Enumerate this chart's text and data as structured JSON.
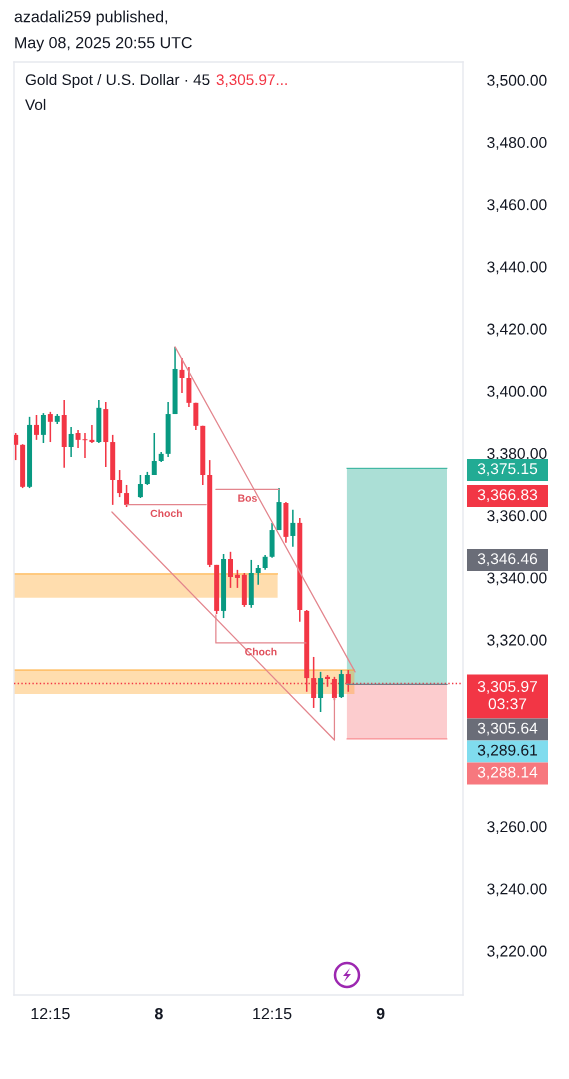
{
  "chart_data": {
    "type": "candlestick",
    "title": "Gold Spot / U.S. Dollar · 45",
    "x": [
      "2025-05-07T08:30",
      "2025-05-07T09:15",
      "2025-05-07T10:00",
      "2025-05-07T10:45",
      "2025-05-07T11:30",
      "2025-05-07T12:15",
      "2025-05-07T13:00",
      "2025-05-07T13:45",
      "2025-05-07T14:30",
      "2025-05-07T15:15",
      "2025-05-07T16:00",
      "2025-05-07T16:45",
      "2025-05-07T17:30",
      "2025-05-07T18:15",
      "2025-05-07T19:00",
      "2025-05-07T19:45",
      "2025-05-07T20:30",
      "2025-05-07T22:00",
      "2025-05-07T22:45",
      "2025-05-07T23:30",
      "2025-05-08T00:15",
      "2025-05-08T01:00",
      "2025-05-08T01:45",
      "2025-05-08T02:30",
      "2025-05-08T03:15",
      "2025-05-08T04:00",
      "2025-05-08T04:45",
      "2025-05-08T05:30",
      "2025-05-08T06:15",
      "2025-05-08T07:00",
      "2025-05-08T07:45",
      "2025-05-08T08:30",
      "2025-05-08T09:15",
      "2025-05-08T10:00",
      "2025-05-08T10:45",
      "2025-05-08T11:30",
      "2025-05-08T12:15",
      "2025-05-08T13:00",
      "2025-05-08T13:45",
      "2025-05-08T14:30",
      "2025-05-08T15:15",
      "2025-05-08T16:00",
      "2025-05-08T16:45",
      "2025-05-08T17:30",
      "2025-05-08T18:15",
      "2025-05-08T19:00",
      "2025-05-08T19:45",
      "2025-05-08T20:30"
    ],
    "ohlc": [
      [
        3385.9,
        3386.5,
        3377.8,
        3382.7
      ],
      [
        3382.7,
        3382.9,
        3368.8,
        3369.2
      ],
      [
        3369.2,
        3391.7,
        3368.8,
        3389.1
      ],
      [
        3389.1,
        3392.3,
        3384.3,
        3385.9
      ],
      [
        3385.9,
        3392.9,
        3383.3,
        3392.3
      ],
      [
        3392.6,
        3393.3,
        3383.6,
        3390.1
      ],
      [
        3390.1,
        3392.6,
        3389.4,
        3392.0
      ],
      [
        3392.3,
        3397.1,
        3375.3,
        3382.0
      ],
      [
        3382.0,
        3388.4,
        3378.8,
        3386.2
      ],
      [
        3386.5,
        3387.5,
        3381.7,
        3384.3
      ],
      [
        3384.5,
        3386.5,
        3378.5,
        3384.2
      ],
      [
        3384.3,
        3389.1,
        3383.3,
        3383.6
      ],
      [
        3383.6,
        3397.1,
        3383.3,
        3394.6
      ],
      [
        3394.2,
        3396.5,
        3375.6,
        3383.6
      ],
      [
        3383.6,
        3385.9,
        3363.4,
        3371.4
      ],
      [
        3371.4,
        3374.6,
        3365.9,
        3367.2
      ],
      [
        3367.2,
        3369.8,
        3362.7,
        3363.4
      ],
      [
        3365.9,
        3373.0,
        3365.6,
        3370.1
      ],
      [
        3370.1,
        3374.0,
        3369.8,
        3373.0
      ],
      [
        3373.0,
        3386.5,
        3373.0,
        3377.5
      ],
      [
        3377.5,
        3380.4,
        3377.2,
        3379.8
      ],
      [
        3379.8,
        3396.5,
        3378.8,
        3392.6
      ],
      [
        3392.6,
        3414.2,
        3392.6,
        3407.1
      ],
      [
        3406.8,
        3410.6,
        3399.4,
        3404.2
      ],
      [
        3404.2,
        3407.7,
        3394.9,
        3396.2
      ],
      [
        3396.2,
        3396.2,
        3387.5,
        3388.8
      ],
      [
        3388.8,
        3388.8,
        3369.8,
        3373.0
      ],
      [
        3373.0,
        3377.8,
        3343.4,
        3344.1
      ],
      [
        3344.1,
        3344.1,
        3328.3,
        3329.3
      ],
      [
        3329.3,
        3347.6,
        3327.0,
        3346.0
      ],
      [
        3346.0,
        3348.3,
        3336.7,
        3340.2
      ],
      [
        3340.9,
        3342.5,
        3336.7,
        3339.9
      ],
      [
        3340.9,
        3341.5,
        3330.6,
        3331.2
      ],
      [
        3331.2,
        3345.7,
        3330.3,
        3341.5
      ],
      [
        3341.5,
        3344.1,
        3337.7,
        3343.1
      ],
      [
        3343.1,
        3347.3,
        3342.5,
        3346.7
      ],
      [
        3346.7,
        3357.6,
        3346.4,
        3355.3
      ],
      [
        3355.3,
        3368.8,
        3355.3,
        3364.3
      ],
      [
        3364.0,
        3364.3,
        3351.2,
        3353.1
      ],
      [
        3353.4,
        3361.8,
        3349.9,
        3357.6
      ],
      [
        3357.6,
        3359.2,
        3325.8,
        3329.6
      ],
      [
        3329.3,
        3329.6,
        3303.3,
        3307.7
      ],
      [
        3307.7,
        3314.5,
        3298.1,
        3301.3
      ],
      [
        3301.3,
        3309.7,
        3296.8,
        3307.7
      ],
      [
        3308.1,
        3308.7,
        3304.9,
        3307.4
      ],
      [
        3307.4,
        3308.1,
        3300.6,
        3301.3
      ],
      [
        3301.6,
        3310.3,
        3301.3,
        3309.0
      ],
      [
        3309.0,
        3310.3,
        3303.3,
        3305.97
      ]
    ],
    "series": [
      {
        "type": "line",
        "x": [
          "2025-05-07T08:19",
          "2025-05-08T12:51"
        ],
        "values": [
          3341.2,
          3341.2
        ],
        "lower": [
          3333.5,
          3333.5
        ],
        "upper": [
          3341.2,
          3341.2
        ],
        "color": "#ffa62b"
      },
      {
        "type": "line",
        "x": [
          "2025-05-07T08:19",
          "2025-05-08T21:10"
        ],
        "values": [
          3310.3,
          3310.3
        ],
        "lower": [
          3302.6,
          3302.6
        ],
        "upper": [
          3310.3,
          3310.3
        ],
        "color": "#ffa52a"
      },
      {
        "type": "line",
        "x": [
          "2025-05-08T20:21",
          "2025-05-09T07:11"
        ],
        "values": [
          3375.15,
          3375.15
        ],
        "lower": [
          3305.64,
          3305.64
        ],
        "upper": [
          3375.15,
          3375.15
        ],
        "color": "#22ab94"
      },
      {
        "type": "line",
        "x": [
          "2025-05-08T20:21",
          "2025-05-09T07:11"
        ],
        "values": [
          3288.14,
          3288.14
        ],
        "lower": [
          3288.14,
          3288.14
        ],
        "upper": [
          3305.64,
          3305.64
        ],
        "color": "#f7787e"
      },
      {
        "type": "line",
        "x": [
          "2025-05-08T20:21",
          "2025-05-09T07:11"
        ],
        "values": [
          3305.64,
          3305.64
        ],
        "color": "#787b86"
      },
      {
        "type": "line",
        "x": [
          "2025-05-08T01:45",
          "2025-05-08T21:14"
        ],
        "values": [
          3414.2,
          3309.7
        ],
        "color": "#e3858d"
      },
      {
        "type": "line",
        "x": [
          "2025-05-07T18:55",
          "2025-05-08T19:00",
          "2025-05-08T19:00"
        ],
        "values": [
          3361.1,
          3287.8,
          3301.3
        ],
        "color": "#e3858d"
      },
      {
        "type": "line",
        "name": "Choch",
        "x": [
          "2025-05-07T20:30",
          "2025-05-08T05:07"
        ],
        "values": [
          3363.5,
          3363.5
        ],
        "color": "#e3858d"
      },
      {
        "type": "line",
        "name": "Bos",
        "x": [
          "2025-05-08T06:10",
          "2025-05-08T13:00"
        ],
        "values": [
          3368.4,
          3368.4
        ],
        "color": "#e3858d"
      },
      {
        "type": "line",
        "name": "Choch",
        "x": [
          "2025-05-08T06:10",
          "2025-05-08T06:10",
          "2025-05-08T15:55"
        ],
        "values": [
          3328.0,
          3319.0,
          3319.0
        ],
        "color": "#e3858d"
      }
    ],
    "ref_lines": [
      {
        "axis": "y",
        "value": 3305.97,
        "label": "3,305.97\n03:37",
        "color": "#f23645",
        "line_style": "dotted"
      }
    ],
    "annotations": [
      "azadali259 published,",
      "May 08, 2025 20:55 UTC",
      "3,305.97...",
      "Vol",
      "3,375.15",
      "3,366.83",
      "3,346.46",
      "3,305.64",
      "3,289.61",
      "3,288.14"
    ],
    "xlim": [
      "2025-05-07T08:19",
      "2025-05-09T08:55"
    ],
    "xticks": [
      {
        "value": "2025-05-07T12:15",
        "label": "12:15"
      },
      {
        "value": "2025-05-08",
        "label": "8"
      },
      {
        "value": "2025-05-08T12:15",
        "label": "12:15"
      },
      {
        "value": "2025-05-09",
        "label": "9"
      }
    ],
    "ylim": [
      3205.8,
      3505.8
    ],
    "yticks": [
      {
        "value": 3220,
        "label": "3,220.00"
      },
      {
        "value": 3240,
        "label": "3,240.00"
      },
      {
        "value": 3260,
        "label": "3,260.00"
      },
      {
        "value": 3320,
        "label": "3,320.00"
      },
      {
        "value": 3340,
        "label": "3,340.00"
      },
      {
        "value": 3360,
        "label": "3,360.00"
      },
      {
        "value": 3380,
        "label": "3,380.00"
      },
      {
        "value": 3400,
        "label": "3,400.00"
      },
      {
        "value": 3420,
        "label": "3,420.00"
      },
      {
        "value": 3440,
        "label": "3,440.00"
      },
      {
        "value": 3460,
        "label": "3,460.00"
      },
      {
        "value": 3480,
        "label": "3,480.00"
      },
      {
        "value": 3500,
        "label": "3,500.00"
      }
    ]
  }
}
